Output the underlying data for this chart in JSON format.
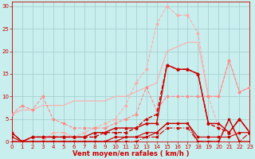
{
  "title": "",
  "xlabel": "Vent moyen/en rafales ( km/h )",
  "ylabel": "",
  "xlim": [
    0,
    23
  ],
  "ylim": [
    0,
    31
  ],
  "yticks": [
    0,
    5,
    10,
    15,
    20,
    25,
    30
  ],
  "xticks": [
    0,
    1,
    2,
    3,
    4,
    5,
    6,
    7,
    8,
    9,
    10,
    11,
    12,
    13,
    14,
    15,
    16,
    17,
    18,
    19,
    20,
    21,
    22,
    23
  ],
  "bg_color": "#c8eeed",
  "grid_color": "#a0cccc",
  "series": [
    {
      "x": [
        0,
        1,
        2,
        3,
        4,
        5,
        6,
        7,
        8,
        9,
        10,
        11,
        12,
        13,
        14,
        15,
        16,
        17,
        18,
        19,
        20,
        21,
        22,
        23
      ],
      "y": [
        6,
        7,
        7,
        8,
        8,
        8,
        9,
        9,
        9,
        9,
        10,
        10,
        11,
        12,
        13,
        20,
        21,
        22,
        22,
        10,
        10,
        18,
        11,
        12
      ],
      "color": "#ffaaaa",
      "lw": 0.8,
      "marker": "None",
      "ms": 0,
      "ls": "-"
    },
    {
      "x": [
        0,
        1,
        2,
        3,
        4,
        5,
        6,
        7,
        8,
        9,
        10,
        11,
        12,
        13,
        14,
        15,
        16,
        17,
        18,
        19,
        20,
        21,
        22,
        23
      ],
      "y": [
        0,
        0,
        0,
        0,
        2,
        2,
        1,
        2,
        3,
        4,
        5,
        8,
        13,
        16,
        26,
        30,
        28,
        28,
        24,
        10,
        3,
        2,
        2,
        2
      ],
      "color": "#ffaaaa",
      "lw": 0.8,
      "marker": "D",
      "ms": 1.5,
      "ls": "--"
    },
    {
      "x": [
        0,
        1,
        2,
        3,
        4,
        5,
        6,
        7,
        8,
        9,
        10,
        11,
        12,
        13,
        14,
        15,
        16,
        17,
        18,
        19,
        20,
        21,
        22,
        23
      ],
      "y": [
        6,
        8,
        7,
        10,
        5,
        4,
        3,
        3,
        3,
        3,
        4,
        5,
        6,
        12,
        7,
        10,
        10,
        10,
        10,
        10,
        10,
        18,
        11,
        12
      ],
      "color": "#ff8888",
      "lw": 0.8,
      "marker": "D",
      "ms": 1.5,
      "ls": "--"
    },
    {
      "x": [
        0,
        1,
        2,
        3,
        4,
        5,
        6,
        7,
        8,
        9,
        10,
        11,
        12,
        13,
        14,
        15,
        16,
        17,
        18,
        19,
        20,
        21,
        22,
        23
      ],
      "y": [
        2,
        0,
        1,
        1,
        1,
        1,
        1,
        1,
        1,
        2,
        2,
        2,
        3,
        5,
        6,
        17,
        16,
        16,
        15,
        4,
        3,
        2,
        5,
        2
      ],
      "color": "#cc0000",
      "lw": 1.0,
      "marker": "D",
      "ms": 1.5,
      "ls": "--"
    },
    {
      "x": [
        0,
        1,
        2,
        3,
        4,
        5,
        6,
        7,
        8,
        9,
        10,
        11,
        12,
        13,
        14,
        15,
        16,
        17,
        18,
        19,
        20,
        21,
        22,
        23
      ],
      "y": [
        2,
        0,
        1,
        1,
        1,
        1,
        1,
        1,
        2,
        2,
        3,
        3,
        3,
        4,
        4,
        17,
        16,
        16,
        15,
        4,
        4,
        2,
        5,
        2
      ],
      "color": "#cc0000",
      "lw": 1.0,
      "marker": "^",
      "ms": 2,
      "ls": "-"
    },
    {
      "x": [
        0,
        1,
        2,
        3,
        4,
        5,
        6,
        7,
        8,
        9,
        10,
        11,
        12,
        13,
        14,
        15,
        16,
        17,
        18,
        19,
        20,
        21,
        22,
        23
      ],
      "y": [
        1,
        0,
        0,
        0,
        0,
        0,
        0,
        0,
        0,
        0,
        1,
        1,
        1,
        2,
        2,
        4,
        4,
        4,
        1,
        1,
        1,
        1,
        2,
        2
      ],
      "color": "#cc0000",
      "lw": 0.8,
      "marker": "s",
      "ms": 1.5,
      "ls": "-"
    },
    {
      "x": [
        0,
        1,
        2,
        3,
        4,
        5,
        6,
        7,
        8,
        9,
        10,
        11,
        12,
        13,
        14,
        15,
        16,
        17,
        18,
        19,
        20,
        21,
        22,
        23
      ],
      "y": [
        0,
        0,
        0,
        0,
        0,
        0,
        0,
        0,
        0,
        0,
        0,
        0,
        0,
        1,
        1,
        3,
        3,
        3,
        0,
        0,
        0,
        5,
        0,
        2
      ],
      "color": "#cc0000",
      "lw": 0.8,
      "marker": "x",
      "ms": 2,
      "ls": "-."
    },
    {
      "x": [
        0,
        1,
        2,
        3,
        4,
        5,
        6,
        7,
        8,
        9,
        10,
        11,
        12,
        13,
        14,
        15,
        16,
        17,
        18,
        19,
        20,
        21,
        22,
        23
      ],
      "y": [
        0,
        0,
        0,
        0,
        0,
        0,
        0,
        0,
        0,
        0,
        0,
        1,
        1,
        1,
        2,
        4,
        4,
        4,
        0,
        0,
        0,
        5,
        0,
        0
      ],
      "color": "#cc0000",
      "lw": 0.8,
      "marker": "+",
      "ms": 2,
      "ls": "-"
    }
  ]
}
